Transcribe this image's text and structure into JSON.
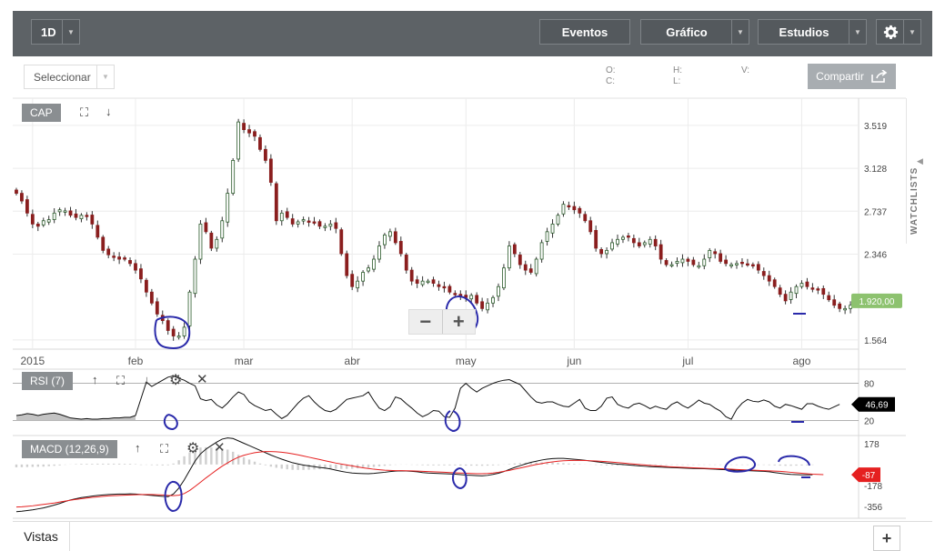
{
  "toolbar": {
    "period": "1D",
    "events": "Eventos",
    "chart": "Gráfico",
    "studies": "Estudios"
  },
  "subbar": {
    "select_placeholder": "Seleccionar",
    "o_label": "O:",
    "c_label": "C:",
    "h_label": "H:",
    "l_label": "L:",
    "v_label": "V:",
    "share": "Compartir"
  },
  "side": {
    "watchlists": "WATCHLISTS"
  },
  "bottom": {
    "views": "Vistas"
  },
  "colors": {
    "up": "#2a5a2a",
    "down": "#8a1e1e",
    "price_badge": "#8dc26f",
    "rsi_badge": "#000000",
    "macd_badge": "#e52020",
    "macd_signal": "#e52020",
    "annotation": "#2a2aaa"
  },
  "chart_data": [
    {
      "type": "candlestick",
      "label": "CAP",
      "x_ticks": [
        "2015",
        "feb",
        "mar",
        "abr",
        "may",
        "jun",
        "jul",
        "ago"
      ],
      "y_ticks": [
        "3.519",
        "3.128",
        "2.737",
        "2.346",
        "1.564"
      ],
      "ylim": [
        1.48,
        3.75
      ],
      "last_value": "1.920,00",
      "close": [
        2.9,
        2.83,
        2.72,
        2.62,
        2.6,
        2.65,
        2.66,
        2.72,
        2.75,
        2.74,
        2.7,
        2.68,
        2.7,
        2.69,
        2.62,
        2.5,
        2.38,
        2.34,
        2.32,
        2.3,
        2.3,
        2.26,
        2.2,
        2.12,
        2.0,
        1.9,
        1.8,
        1.74,
        1.65,
        1.6,
        1.6,
        1.68,
        2.0,
        2.3,
        2.62,
        2.55,
        2.4,
        2.48,
        2.65,
        2.9,
        3.2,
        3.55,
        3.48,
        3.45,
        3.42,
        3.3,
        3.2,
        3.0,
        2.65,
        2.72,
        2.68,
        2.62,
        2.64,
        2.66,
        2.64,
        2.63,
        2.6,
        2.6,
        2.62,
        2.58,
        2.35,
        2.15,
        2.05,
        2.1,
        2.18,
        2.22,
        2.3,
        2.42,
        2.52,
        2.55,
        2.45,
        2.35,
        2.2,
        2.1,
        2.08,
        2.1,
        2.1,
        2.08,
        2.05,
        2.04,
        2.0,
        1.98,
        1.96,
        1.95,
        1.97,
        1.9,
        1.85,
        1.9,
        1.95,
        2.05,
        2.22,
        2.42,
        2.35,
        2.25,
        2.2,
        2.18,
        2.3,
        2.45,
        2.55,
        2.62,
        2.7,
        2.8,
        2.78,
        2.75,
        2.72,
        2.65,
        2.55,
        2.4,
        2.35,
        2.38,
        2.45,
        2.48,
        2.5,
        2.5,
        2.45,
        2.42,
        2.45,
        2.48,
        2.42,
        2.3,
        2.25,
        2.25,
        2.28,
        2.3,
        2.28,
        2.25,
        2.24,
        2.3,
        2.38,
        2.35,
        2.28,
        2.26,
        2.25,
        2.26,
        2.27,
        2.25,
        2.24,
        2.2,
        2.15,
        2.1,
        2.05,
        1.98,
        1.92,
        2.0,
        2.05,
        2.08,
        2.05,
        2.03,
        2.02,
        1.98,
        1.93,
        1.88,
        1.85,
        1.85,
        1.88,
        1.92
      ]
    },
    {
      "type": "line",
      "label": "RSI (7)",
      "y_ticks": [
        "80",
        "20"
      ],
      "ylim": [
        0,
        100
      ],
      "last_value": "46,69",
      "values": [
        28,
        29,
        31,
        30,
        28,
        30,
        31,
        32,
        30,
        27,
        24,
        23,
        22,
        23,
        22,
        22,
        23,
        23,
        24,
        24,
        25,
        25,
        28,
        55,
        82,
        75,
        80,
        85,
        90,
        92,
        88,
        85,
        80,
        76,
        55,
        52,
        54,
        45,
        40,
        48,
        58,
        66,
        62,
        50,
        44,
        40,
        36,
        38,
        30,
        23,
        28,
        38,
        48,
        56,
        60,
        50,
        42,
        36,
        34,
        38,
        46,
        54,
        56,
        58,
        60,
        66,
        52,
        40,
        36,
        42,
        58,
        55,
        47,
        40,
        32,
        26,
        30,
        36,
        35,
        26,
        25,
        40,
        72,
        80,
        72,
        66,
        72,
        76,
        80,
        83,
        85,
        86,
        82,
        78,
        68,
        58,
        50,
        48,
        50,
        50,
        46,
        43,
        42,
        48,
        54,
        40,
        36,
        36,
        43,
        56,
        58,
        46,
        42,
        40,
        46,
        48,
        44,
        39,
        43,
        40,
        38,
        46,
        50,
        44,
        40,
        46,
        53,
        48,
        46,
        40,
        35,
        26,
        22,
        38,
        48,
        54,
        51,
        50,
        53,
        50,
        43,
        40,
        46,
        44,
        41,
        38,
        47,
        47,
        43,
        40,
        38,
        42,
        46
      ]
    },
    {
      "type": "line",
      "label": "MACD (12,26,9)",
      "y_ticks": [
        "178",
        "-178",
        "-356"
      ],
      "ylim": [
        -440,
        230
      ],
      "last_value": "-87",
      "macd": [
        -400,
        -396,
        -390,
        -384,
        -376,
        -368,
        -356,
        -344,
        -330,
        -314,
        -300,
        -290,
        -280,
        -274,
        -268,
        -262,
        -258,
        -254,
        -252,
        -250,
        -250,
        -248,
        -250,
        -254,
        -258,
        -262,
        -266,
        -270,
        -272,
        -250,
        -200,
        -130,
        -50,
        30,
        90,
        130,
        160,
        190,
        215,
        225,
        220,
        200,
        180,
        160,
        140,
        120,
        100,
        80,
        62,
        45,
        30,
        15,
        5,
        -5,
        -12,
        -18,
        -25,
        -30,
        -38,
        -48,
        -58,
        -66,
        -72,
        -75,
        -77,
        -78,
        -75,
        -70,
        -66,
        -60,
        -56,
        -54,
        -55,
        -58,
        -62,
        -68,
        -72,
        -74,
        -76,
        -78,
        -80,
        -82,
        -86,
        -90,
        -92,
        -94,
        -96,
        -92,
        -84,
        -74,
        -60,
        -42,
        -25,
        -10,
        5,
        18,
        28,
        38,
        45,
        50,
        52,
        52,
        48,
        44,
        40,
        36,
        30,
        24,
        18,
        12,
        8,
        3,
        0,
        -4,
        -8,
        -12,
        -15,
        -18,
        -20,
        -22,
        -24,
        -26,
        -28,
        -30,
        -32,
        -34,
        -35,
        -36,
        -38,
        -40,
        -42,
        -44,
        -46,
        -48,
        -50,
        -52,
        -54,
        -56,
        -58,
        -62,
        -68,
        -74,
        -80,
        -84,
        -86,
        -88,
        -88,
        -87
      ],
      "signal": [
        -360,
        -358,
        -354,
        -350,
        -344,
        -338,
        -332,
        -326,
        -318,
        -310,
        -302,
        -296,
        -290,
        -284,
        -278,
        -274,
        -270,
        -266,
        -264,
        -262,
        -260,
        -258,
        -256,
        -254,
        -254,
        -254,
        -256,
        -258,
        -262,
        -264,
        -260,
        -246,
        -220,
        -186,
        -150,
        -114,
        -80,
        -46,
        -14,
        14,
        40,
        62,
        78,
        90,
        100,
        106,
        110,
        110,
        108,
        104,
        98,
        90,
        82,
        72,
        62,
        52,
        42,
        32,
        22,
        12,
        4,
        -4,
        -12,
        -20,
        -28,
        -34,
        -40,
        -44,
        -48,
        -50,
        -52,
        -52,
        -53,
        -54,
        -56,
        -58,
        -60,
        -62,
        -64,
        -66,
        -68,
        -70,
        -72,
        -74,
        -76,
        -78,
        -78,
        -76,
        -72,
        -66,
        -58,
        -50,
        -40,
        -30,
        -20,
        -10,
        0,
        8,
        16,
        22,
        28,
        32,
        34,
        35,
        35,
        34,
        32,
        30,
        27,
        24,
        20,
        16,
        12,
        8,
        4,
        0,
        -4,
        -8,
        -11,
        -14,
        -17,
        -20,
        -22,
        -24,
        -26,
        -28,
        -30,
        -32,
        -34,
        -35,
        -36,
        -38,
        -40,
        -42,
        -44,
        -46,
        -48,
        -50,
        -52,
        -54,
        -56,
        -58,
        -62,
        -66,
        -70,
        -74,
        -78,
        -82,
        -84,
        -86
      ]
    }
  ]
}
